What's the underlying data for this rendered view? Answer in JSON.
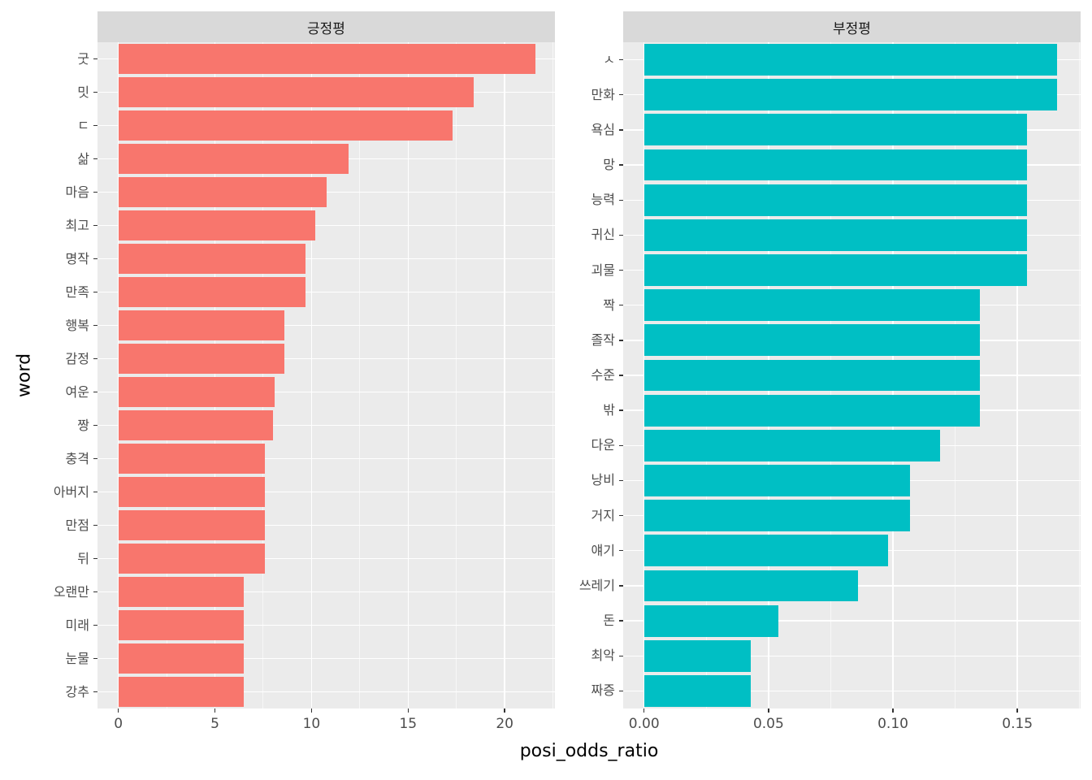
{
  "chart_data": {
    "type": "bar",
    "orientation": "horizontal",
    "title": "",
    "xlabel": "posi_odds_ratio",
    "ylabel": "word",
    "legend": "none",
    "grid": "on",
    "facets": [
      {
        "title": "긍정평",
        "bar_color": "#F8766D",
        "x_domain": [
          -1.08,
          22.6
        ],
        "x_ticks": [
          0,
          5,
          10,
          15,
          20
        ],
        "x_tick_labels": [
          "0",
          "5",
          "10",
          "15",
          "20"
        ],
        "x_minor_ticks": [
          2.5,
          7.5,
          12.5,
          17.5,
          22.5
        ],
        "categories": [
          "굿",
          "밋",
          "ㄷ",
          "삶",
          "마음",
          "최고",
          "명작",
          "만족",
          "행복",
          "감정",
          "여운",
          "짱",
          "충격",
          "아버지",
          "만점",
          "뒤",
          "오랜만",
          "미래",
          "눈물",
          "강추"
        ],
        "values": [
          21.6,
          18.4,
          17.3,
          11.9,
          10.8,
          10.2,
          9.7,
          9.7,
          8.6,
          8.6,
          8.1,
          8.0,
          7.6,
          7.6,
          7.6,
          7.6,
          6.5,
          6.5,
          6.5,
          6.5
        ]
      },
      {
        "title": "부정평",
        "bar_color": "#00BFC4",
        "x_domain": [
          -0.0084,
          0.1754
        ],
        "x_ticks": [
          0,
          0.05,
          0.1,
          0.15
        ],
        "x_tick_labels": [
          "0.00",
          "0.05",
          "0.10",
          "0.15"
        ],
        "x_minor_ticks": [
          0.025,
          0.075,
          0.125,
          0.175
        ],
        "categories": [
          "ㅅ",
          "만화",
          "욕심",
          "망",
          "능력",
          "귀신",
          "괴물",
          "짝",
          "졸작",
          "수준",
          "밖",
          "다운",
          "낭비",
          "거지",
          "얘기",
          "쓰레기",
          "돈",
          "최악",
          "짜증"
        ],
        "values": [
          0.166,
          0.166,
          0.154,
          0.154,
          0.154,
          0.154,
          0.154,
          0.135,
          0.135,
          0.135,
          0.135,
          0.119,
          0.107,
          0.107,
          0.098,
          0.086,
          0.054,
          0.043,
          0.043
        ]
      }
    ],
    "theme": {
      "background": "#FFFFFF",
      "panel_bg": "#EBEBEB",
      "strip_bg": "#D9D9D9",
      "grid_color": "#FFFFFF",
      "tick_color": "#333333",
      "tick_label_color": "#4D4D4D",
      "strip_text_color": "#1A1A1A",
      "axis_title_color": "#000000"
    }
  }
}
